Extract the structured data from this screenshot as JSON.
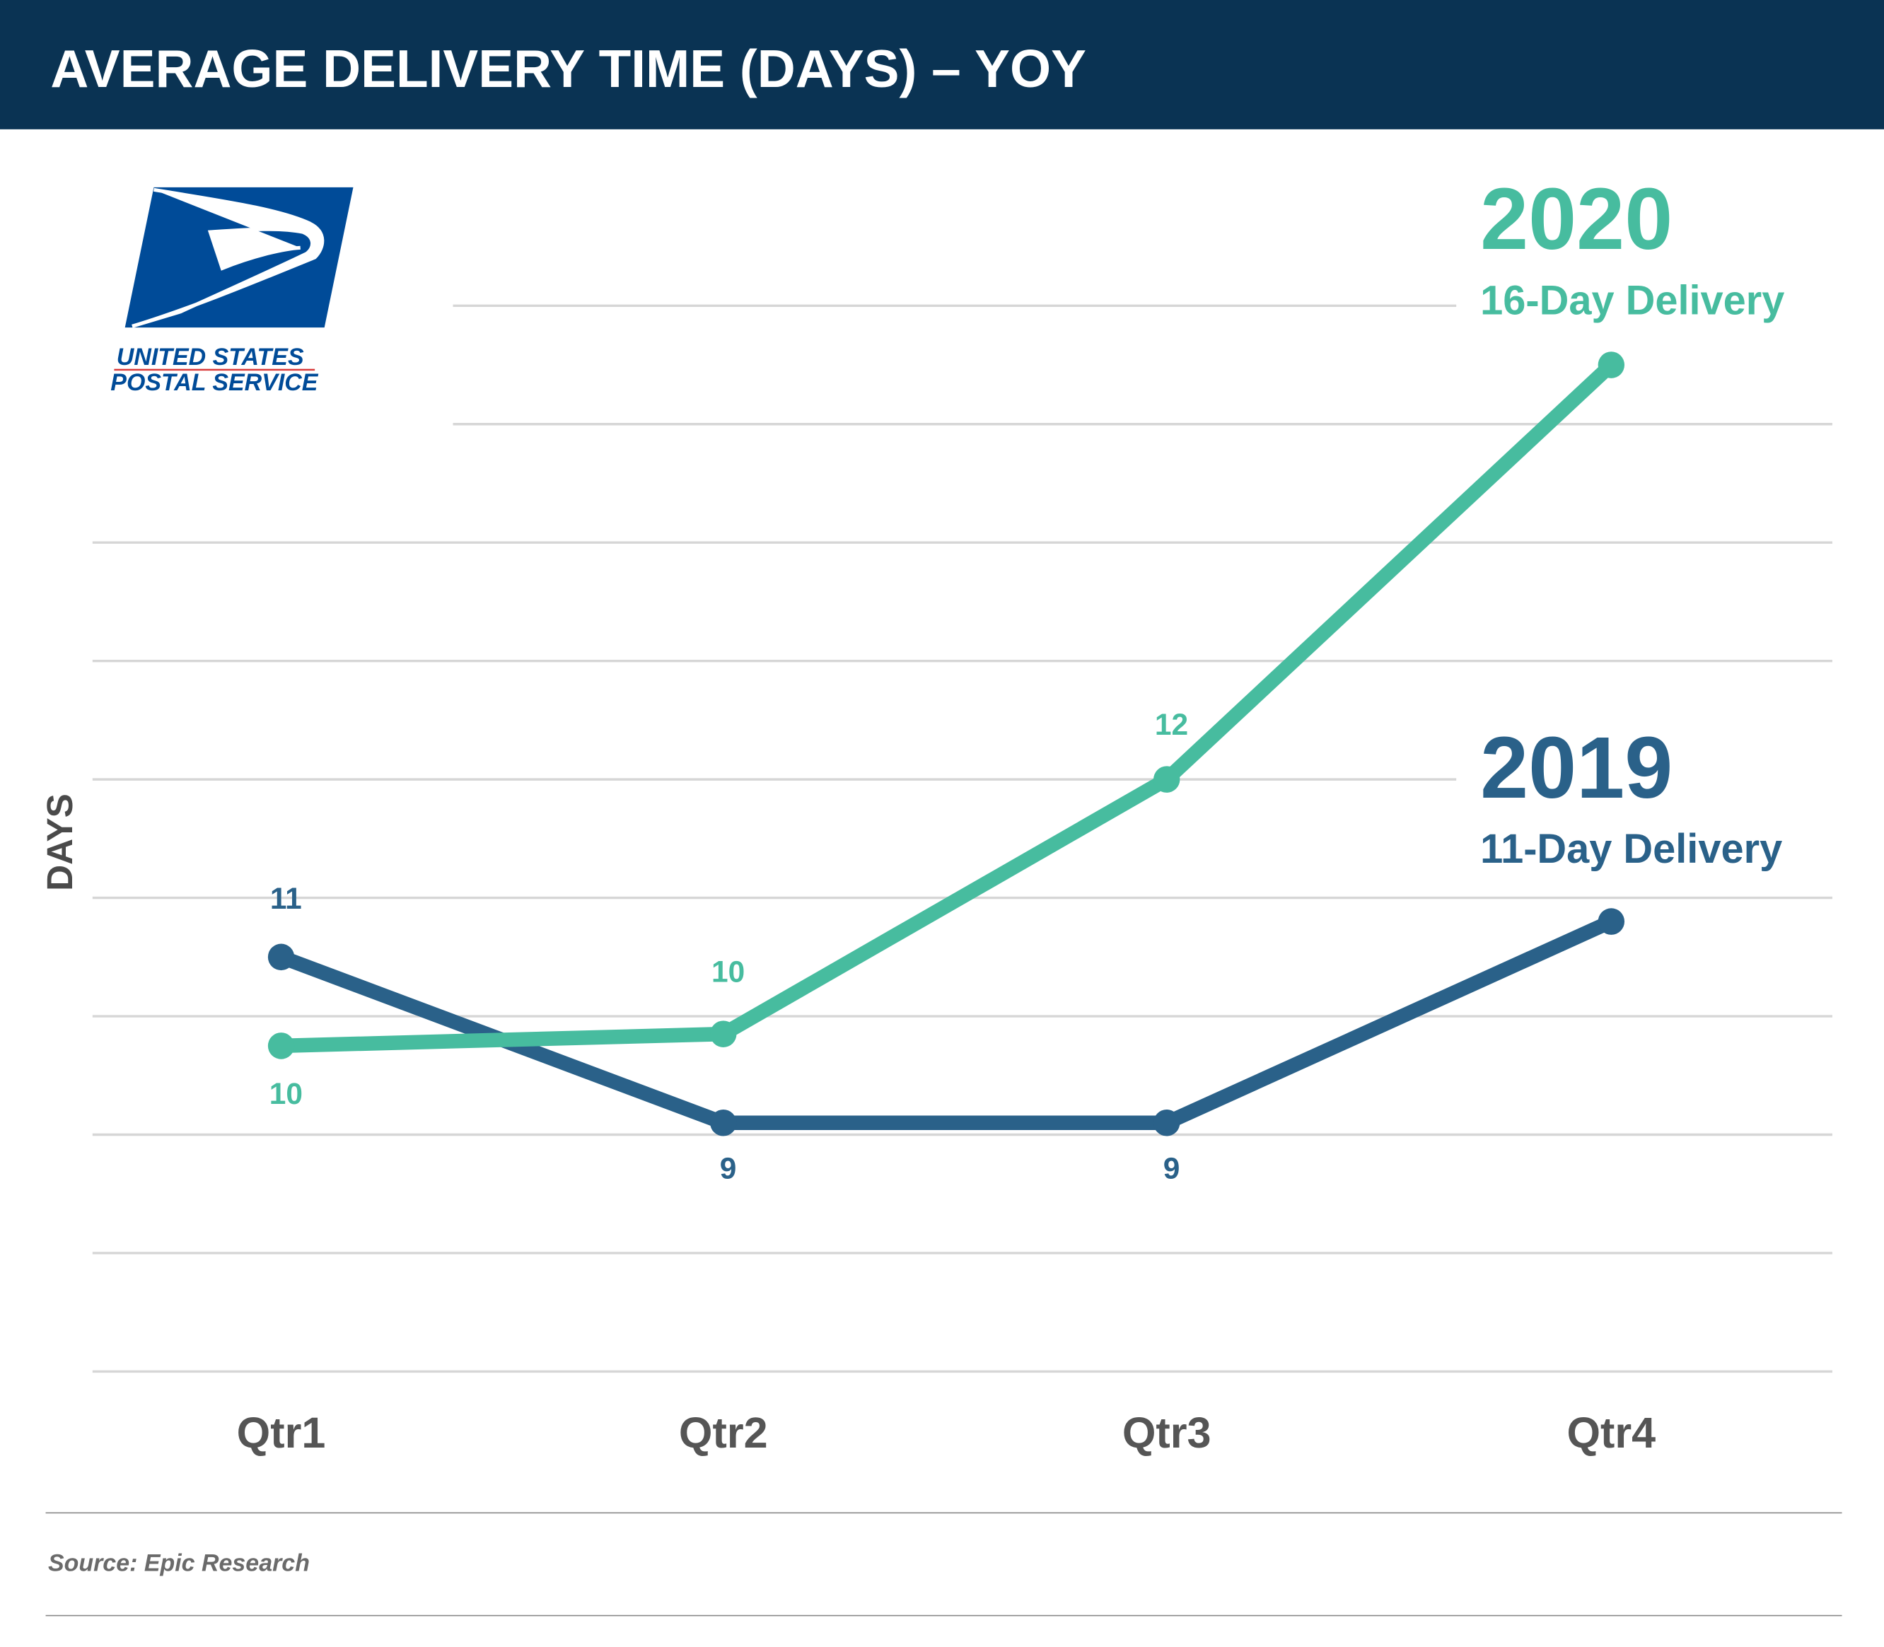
{
  "header": {
    "title": "AVERAGE DELIVERY TIME (DAYS) – YOY",
    "bg_color": "#0a3353"
  },
  "logo": {
    "text_line1": "UNITED STATES",
    "text_line2": "POSTAL SERVICE",
    "mark": "®",
    "color": "#004b98"
  },
  "source": "Source: Epic Research",
  "chart_data": {
    "type": "line",
    "title": "AVERAGE DELIVERY TIME (DAYS) – YOY",
    "ylabel": "DAYS",
    "xlabel": "",
    "categories": [
      "Qtr1",
      "Qtr2",
      "Qtr3",
      "Qtr4"
    ],
    "ylim": [
      7,
      16
    ],
    "grid": true,
    "legend_placement": "right",
    "series": [
      {
        "name": "2020",
        "subtitle": "16-Day Delivery",
        "color": "#47bc9f",
        "values": [
          9.75,
          9.85,
          12,
          15.5
        ],
        "data_labels": [
          "10",
          "10",
          "12",
          ""
        ]
      },
      {
        "name": "2019",
        "subtitle": "11-Day Delivery",
        "color": "#2a6189",
        "values": [
          10.5,
          9.1,
          9.1,
          10.8
        ],
        "data_labels": [
          "11",
          "9",
          "9",
          ""
        ]
      }
    ]
  }
}
